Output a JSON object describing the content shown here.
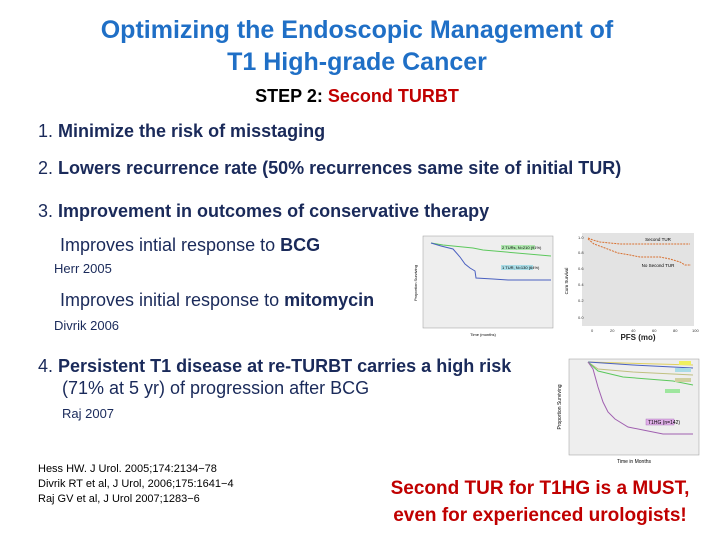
{
  "title": {
    "line1": "Optimizing the Endoscopic Management of",
    "line2": "T1 High-grade Cancer"
  },
  "step": {
    "label": "STEP 2:",
    "value": "Second TURBT"
  },
  "items": [
    {
      "num": "1.",
      "text": "Minimize the risk of misstaging"
    },
    {
      "num": "2.",
      "text": "Lowers recurrence rate (50% recurrences same site of initial TUR)"
    },
    {
      "num": "3.",
      "text": "Improvement in outcomes of conservative therapy"
    },
    {
      "num": "4.",
      "text": "Persistent T1 disease at re-TURBT carries a high risk",
      "text2": "(71% at 5 yr) of progression after BCG"
    }
  ],
  "subitems": [
    {
      "prefix": "Improves intial response to ",
      "bold": "BCG",
      "cite": "Herr 2005"
    },
    {
      "prefix": "Improves initial response to ",
      "bold": "mitomycin",
      "cite": "Divrik 2006"
    }
  ],
  "item4_cite": "Raj 2007",
  "references": [
    "Hess HW. J Urol. 2005;174:2134−78",
    "Divrik RT et al, J Urol, 2006;175:1641−4",
    "Raj GV et al, J Urol 2007;1283−6"
  ],
  "conclusion": {
    "line1": "Second TUR for T1HG is a MUST,",
    "line2": "even for experienced urologists!"
  },
  "charts": {
    "herr": {
      "series": [
        "2 TURs, N=210 (91%)",
        "1 TUR, N=130 (64%)"
      ],
      "xlabel": "Time (months)",
      "ylabel": "Proportion Surviving"
    },
    "divrik": {
      "series": [
        "Second TUR",
        "No Second TUR"
      ],
      "xlabel": "PFS (mo)",
      "ylabel": "Cum Survival",
      "yticks": [
        "1.0",
        "0.8",
        "0.6",
        "0.4",
        "0.2",
        "0.0"
      ],
      "xticks": [
        "0",
        "20",
        "40",
        "60",
        "80",
        "100"
      ]
    },
    "raj": {
      "series": [
        "T1HG (n=142)"
      ],
      "xlabel": "Time in Months",
      "ylabel": "Proportion Surviving"
    }
  },
  "colors": {
    "title": "#1f6fc6",
    "accent": "#c00000",
    "body": "#1a2a5a"
  }
}
